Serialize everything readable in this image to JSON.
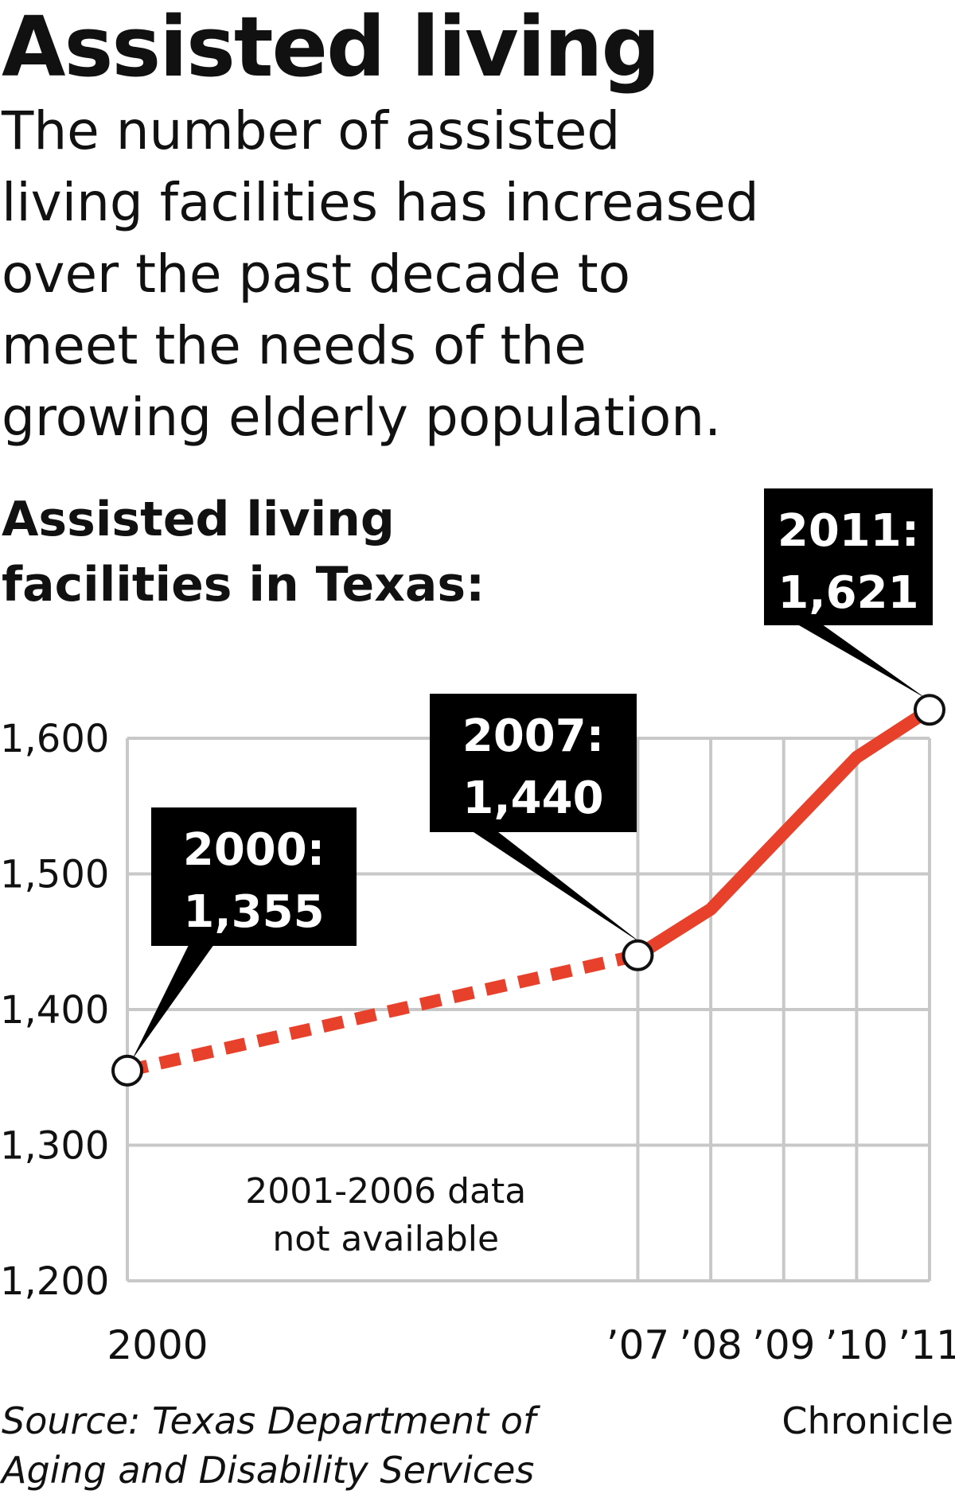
{
  "header": {
    "title": "Assisted living",
    "deck_lines": [
      "The number of assisted",
      "living facilities has increased",
      "over the past decade to",
      "meet the needs of the",
      "growing elderly population."
    ]
  },
  "chart_title_lines": [
    "Assisted living",
    "facilities in Texas:"
  ],
  "chart_data": {
    "type": "line",
    "title": "Assisted living facilities in Texas:",
    "xlabel": "",
    "ylabel": "",
    "x": [
      2000,
      2007,
      2008,
      2009,
      2010,
      2011
    ],
    "x_tick_labels": [
      "2000",
      "’07",
      "’08",
      "’09",
      "’10",
      "’11"
    ],
    "series": [
      {
        "values": [
          1355,
          1440,
          1474,
          1530,
          1586,
          1621
        ]
      }
    ],
    "ylim": [
      1200,
      1600
    ],
    "y_ticks": [
      1200,
      1300,
      1400,
      1500,
      1600
    ],
    "y_tick_labels": [
      "1,200",
      "1,300",
      "1,400",
      "1,500",
      "1,600"
    ],
    "grid": true,
    "gap": {
      "from": 2000,
      "to": 2007,
      "style": "dashed",
      "note_lines": [
        "2001-2006 data",
        "not available"
      ]
    },
    "callouts": [
      {
        "x": 2000,
        "year_label": "2000:",
        "value_label": "1,355"
      },
      {
        "x": 2007,
        "year_label": "2007:",
        "value_label": "1,440"
      },
      {
        "x": 2011,
        "year_label": "2011:",
        "value_label": "1,621"
      }
    ],
    "colors": {
      "line": "#e8412b",
      "grid": "#c8c8c8",
      "callout_bg": "#000000",
      "callout_text": "#ffffff"
    }
  },
  "footer": {
    "source_lines": [
      "Source: Texas Department of",
      "Aging and Disability Services"
    ],
    "credit": "Chronicle"
  }
}
